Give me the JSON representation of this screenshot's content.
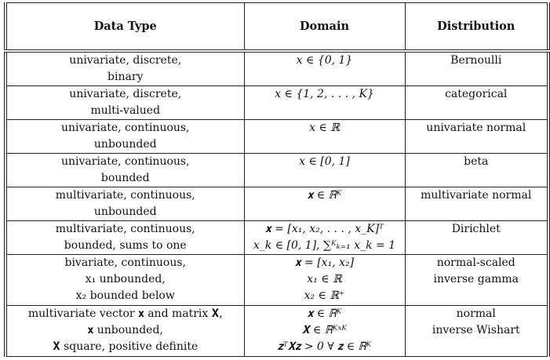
{
  "headers": [
    "Data Type",
    "Domain",
    "Distribution"
  ],
  "rows": [
    {
      "type": [
        "univariate, discrete,",
        "binary"
      ],
      "domain": [
        "x ∈ {0, 1}"
      ],
      "dist": [
        "Bernoulli"
      ]
    },
    {
      "type": [
        "univariate, discrete,",
        "multi-valued"
      ],
      "domain": [
        "x ∈ {1, 2, . . . , K}"
      ],
      "dist": [
        "categorical"
      ]
    },
    {
      "type": [
        "univariate, continuous,",
        "unbounded"
      ],
      "domain": [
        "x ∈ ℝ"
      ],
      "dist": [
        "univariate normal"
      ]
    },
    {
      "type": [
        "univariate, continuous,",
        "bounded"
      ],
      "domain": [
        "x ∈ [0, 1]"
      ],
      "dist": [
        "beta"
      ]
    },
    {
      "type": [
        "multivariate, continuous,",
        "unbounded"
      ],
      "domain": [
        "𝐱 ∈ ℝᴷ"
      ],
      "dist": [
        "multivariate normal"
      ]
    },
    {
      "type": [
        "multivariate, continuous,",
        "bounded, sums to one"
      ],
      "domain": [
        "𝐱 = [x₁, x₂, . . . , x_K]ᵀ",
        "x_k ∈ [0, 1], ∑ᴷₖ₌₁ x_k = 1"
      ],
      "dist": [
        "Dirichlet"
      ]
    },
    {
      "type": [
        "bivariate, continuous,",
        "x₁ unbounded,",
        "x₂ bounded below"
      ],
      "domain": [
        "𝐱 = [x₁, x₂]",
        "x₁ ∈ ℝ",
        "x₂ ∈ ℝ⁺"
      ],
      "dist": [
        "normal-scaled",
        "inverse gamma"
      ]
    },
    {
      "type": [
        "multivariate vector 𝐱 and matrix 𝐗,",
        "𝐱 unbounded,",
        "𝐗 square, positive definite"
      ],
      "domain": [
        "𝐱 ∈ ℝᴷ",
        "𝐗 ∈ ℝᴷˣᴷ",
        "𝐳ᵀ𝐗𝐳 > 0    ∀ 𝐳 ∈ ℝᴷ"
      ],
      "dist": [
        "normal",
        "inverse Wishart"
      ]
    }
  ]
}
